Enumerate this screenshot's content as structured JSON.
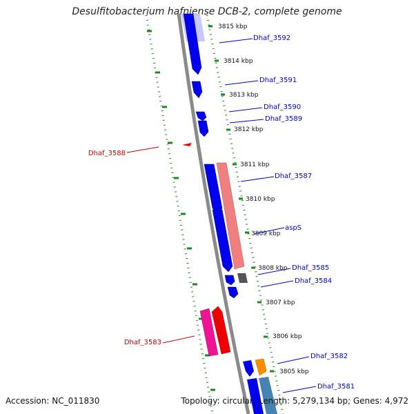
{
  "title": "Desulfitobacterium hafniense DCB-2, complete genome",
  "accession": "Accession: NC_011830",
  "summary": "Topology: circular; Length: 5,279,134 bp; Genes: 4,972",
  "colors": {
    "backbone": "#888888",
    "tick": "#1a8a1a",
    "label_forward": "#0000cc",
    "label_reverse": "#cc0000",
    "gene_blue": "#0000ee",
    "gene_salmon": "#f08080",
    "gene_gray": "#555555",
    "gene_red": "#ee0000",
    "gene_pink": "#ee1493",
    "gene_orange": "#ff8c00",
    "gene_steel": "#4682b4"
  },
  "kbp_labels": [
    "3815 kbp",
    "3814 kbp",
    "3813 kbp",
    "3812 kbp",
    "3811 kbp",
    "3810 kbp",
    "3809 kbp",
    "3808 kbp",
    "3807 kbp",
    "3806 kbp",
    "3805 kbp"
  ],
  "gene_labels_forward": [
    "Dhaf_3592",
    "Dhaf_3591",
    "Dhaf_3590",
    "Dhaf_3589",
    "Dhaf_3587",
    "aspS",
    "Dhaf_3585",
    "Dhaf_3584",
    "Dhaf_3582",
    "Dhaf_3581"
  ],
  "gene_labels_reverse": [
    "Dhaf_3588",
    "Dhaf_3583"
  ]
}
